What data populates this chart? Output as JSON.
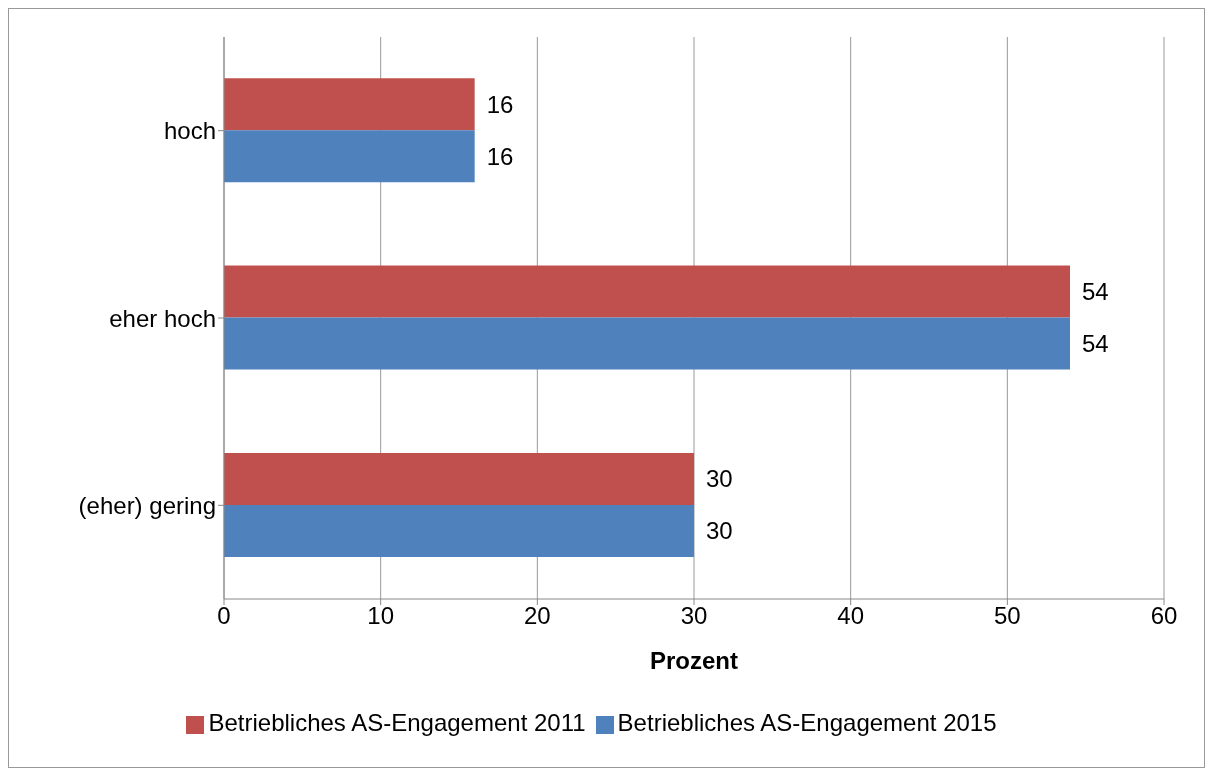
{
  "chart_data": {
    "type": "bar",
    "orientation": "horizontal",
    "categories": [
      "hoch",
      "eher hoch",
      "(eher) gering"
    ],
    "xlabel": "Prozent",
    "xlim": [
      0,
      60
    ],
    "xticks": [
      0,
      10,
      20,
      30,
      40,
      50,
      60
    ],
    "grid": "x",
    "legend": "bottom",
    "data_labels": true,
    "series": [
      {
        "name": "Betriebliches AS-Engagement 2011",
        "color": "#c0504d",
        "values": [
          16,
          54,
          30
        ]
      },
      {
        "name": "Betriebliches AS-Engagement 2015",
        "color": "#4f81bd",
        "values": [
          16,
          54,
          30
        ]
      }
    ]
  }
}
